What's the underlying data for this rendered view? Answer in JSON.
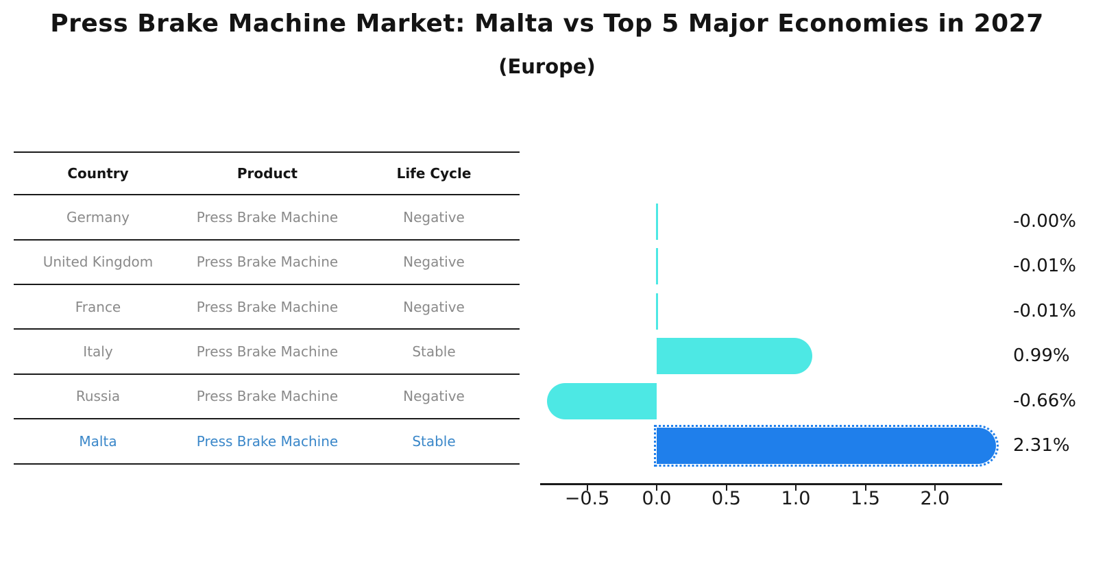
{
  "title": "Press Brake Machine Market: Malta vs Top 5 Major Economies in 2027",
  "subtitle": "(Europe)",
  "table": {
    "headers": [
      "Country",
      "Product",
      "Life Cycle"
    ],
    "rows": [
      {
        "country": "Germany",
        "product": "Press Brake Machine",
        "life_cycle": "Negative",
        "highlight": false
      },
      {
        "country": "United Kingdom",
        "product": "Press Brake Machine",
        "life_cycle": "Negative",
        "highlight": false
      },
      {
        "country": "France",
        "product": "Press Brake Machine",
        "life_cycle": "Negative",
        "highlight": false
      },
      {
        "country": "Italy",
        "product": "Press Brake Machine",
        "life_cycle": "Stable",
        "highlight": false
      },
      {
        "country": "Russia",
        "product": "Press Brake Machine",
        "life_cycle": "Negative",
        "highlight": false
      },
      {
        "country": "Malta",
        "product": "Press Brake Machine",
        "life_cycle": "Stable",
        "highlight": true
      }
    ]
  },
  "chart_data": {
    "type": "bar",
    "orientation": "horizontal",
    "categories": [
      "Germany",
      "United Kingdom",
      "France",
      "Italy",
      "Russia",
      "Malta"
    ],
    "values": [
      -0.0,
      -0.01,
      -0.01,
      0.99,
      -0.66,
      2.31
    ],
    "value_labels": [
      "-0.00%",
      "-0.01%",
      "-0.01%",
      "0.99%",
      "-0.66%",
      "2.31%"
    ],
    "x_ticks": [
      "−0.5",
      "0.0",
      "0.5",
      "1.0",
      "1.5",
      "2.0"
    ],
    "x_tick_values": [
      -0.5,
      0.0,
      0.5,
      1.0,
      1.5,
      2.0
    ],
    "xlim": [
      -0.84,
      2.48
    ],
    "grid": false,
    "legend": "none",
    "highlight_category": "Malta",
    "colors": {
      "default_bar": "#4de8e4",
      "highlight_bar": "#1f7feb",
      "highlight_text": "#3a87c9",
      "row_text": "#8a8a8a",
      "header_text": "#141414",
      "axis": "#1a1a1a"
    }
  }
}
